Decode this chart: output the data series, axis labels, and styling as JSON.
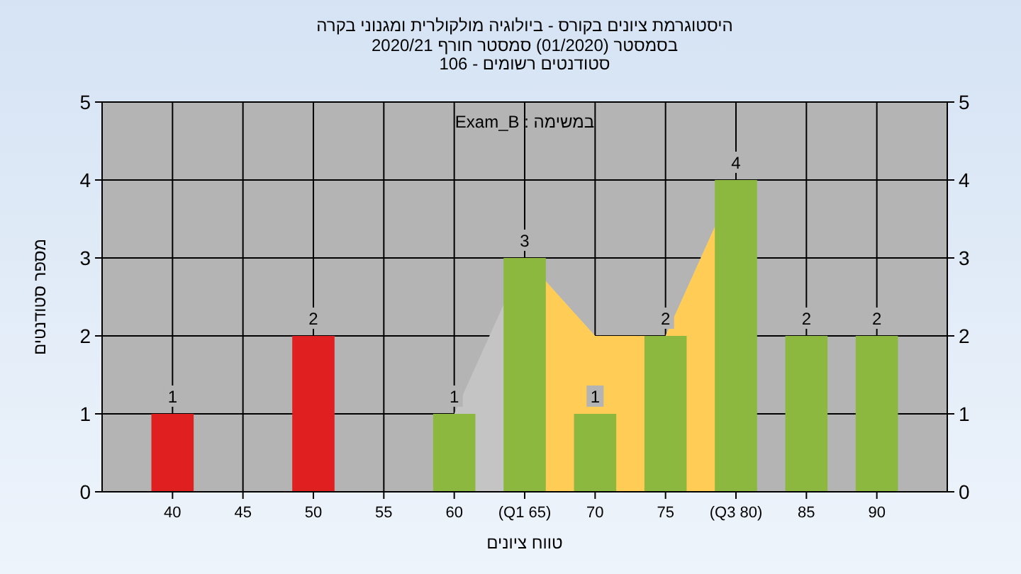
{
  "chart_data": {
    "type": "bar",
    "title": "היסטוגרמת ציונים בקורס - ביולוגיה מולקולרית ומגנוני בקרה",
    "subtitle": "בסמסטר (01/2020) סמסטר חורף 2020/21\nסטודנטים רשומים - 106",
    "xlabel": "טווח ציונים",
    "ylabel": "מספר סטודנטים",
    "annotations": [
      "במשימה : Exam_B"
    ],
    "categories": [
      "40",
      "45",
      "50",
      "55",
      "60",
      "(Q1 65)",
      "70",
      "75",
      "(Q3 80)",
      "85",
      "90"
    ],
    "series": [
      {
        "type": "area",
        "color": "#c4c4c4",
        "values": [
          null,
          null,
          null,
          null,
          1,
          3,
          2,
          2,
          4,
          null,
          null
        ]
      },
      {
        "type": "area",
        "color": "#ffcc55",
        "values": [
          null,
          null,
          null,
          null,
          null,
          3,
          2,
          2,
          4,
          null,
          null
        ]
      },
      {
        "colors": [
          "#e02020",
          "#e02020",
          "#e02020",
          "#e02020",
          "#8cb840",
          "#8cb840",
          "#8cb840",
          "#8cb840",
          "#8cb840",
          "#8cb840",
          "#8cb840"
        ],
        "values": [
          1,
          0,
          2,
          0,
          1,
          3,
          1,
          2,
          4,
          2,
          2
        ],
        "value_labels": [
          "1",
          null,
          "2",
          null,
          "1",
          "3",
          "1",
          "2",
          "4",
          "2",
          "2"
        ]
      }
    ],
    "ylim": [
      0,
      5
    ],
    "yticks": [
      0,
      1,
      2,
      3,
      4,
      5
    ],
    "y2lim": [
      0,
      5
    ],
    "y2ticks": [
      0,
      1,
      2,
      3,
      4,
      5
    ],
    "grid": true
  }
}
